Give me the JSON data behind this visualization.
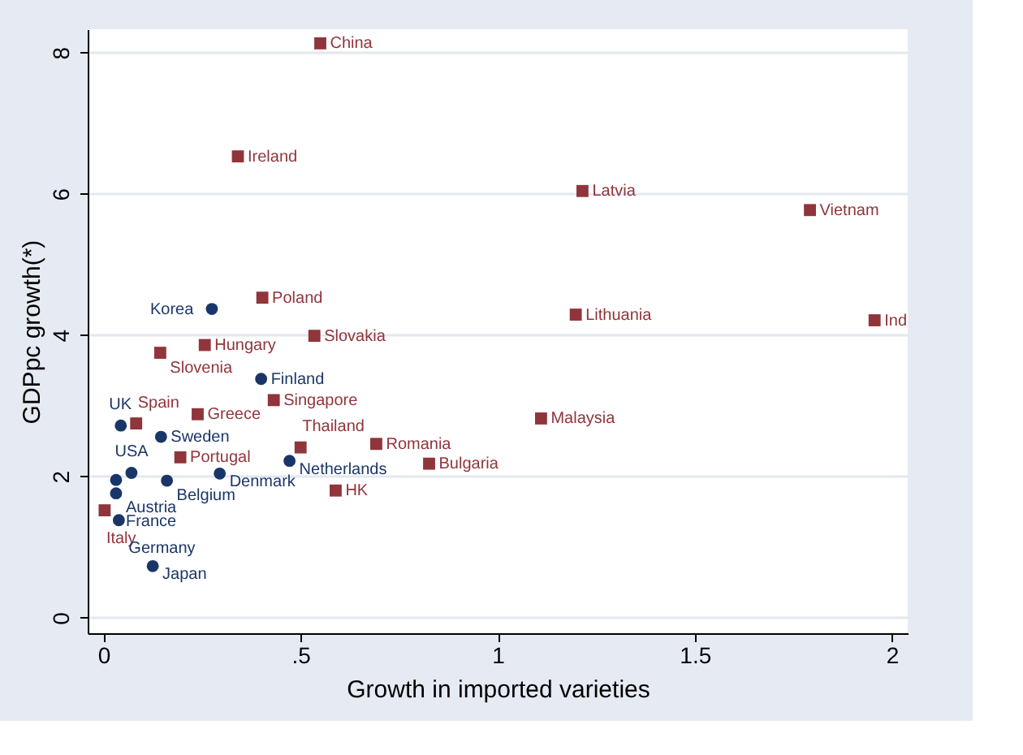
{
  "chart_data": {
    "type": "scatter",
    "xlabel": "Growth in imported varieties",
    "ylabel": "GDPpc growth(*)",
    "xlim": [
      -0.04,
      2.04
    ],
    "ylim": [
      -0.22,
      8.33
    ],
    "xticks": [
      {
        "value": 0,
        "label": "0"
      },
      {
        "value": 0.5,
        "label": ".5"
      },
      {
        "value": 1,
        "label": "1"
      },
      1.5,
      {
        "value": 2,
        "label": "2"
      }
    ],
    "yticks": [
      0,
      2,
      4,
      6,
      8
    ],
    "grid": "y",
    "legend": false,
    "series": [
      {
        "color": "#1a3668",
        "marker": "circle",
        "x": [
          0.275,
          0.4,
          0.044,
          0.146,
          0.472,
          0.071,
          0.295,
          0.032,
          0.161,
          0.032,
          0.039,
          0.125
        ],
        "values": [
          4.37,
          3.38,
          2.72,
          2.56,
          2.22,
          2.05,
          2.04,
          1.95,
          1.94,
          1.76,
          1.38,
          0.73
        ]
      },
      {
        "color": "#90353b",
        "marker": "square",
        "x": [
          0.55,
          0.341,
          1.215,
          1.792,
          0.403,
          1.198,
          1.956,
          0.535,
          0.257,
          0.144,
          0.432,
          0.239,
          1.11,
          0.083,
          0.692,
          0.5,
          0.195,
          0.826,
          0.589,
          0.003
        ],
        "values": [
          8.13,
          6.53,
          6.04,
          5.77,
          4.53,
          4.29,
          4.21,
          3.99,
          3.86,
          3.75,
          3.08,
          2.88,
          2.82,
          2.75,
          2.46,
          2.41,
          2.27,
          2.18,
          1.8,
          1.52
        ]
      }
    ],
    "annotations": [
      {
        "text": "Korea",
        "x": 0.275,
        "y": 4.37
      },
      {
        "text": "Finland",
        "x": 0.4,
        "y": 3.38
      },
      {
        "text": "UK",
        "x": 0.044,
        "y": 2.72
      },
      {
        "text": "Sweden",
        "x": 0.146,
        "y": 2.56
      },
      {
        "text": "Netherlands",
        "x": 0.472,
        "y": 2.22
      },
      {
        "text": "USA",
        "x": 0.071,
        "y": 2.05
      },
      {
        "text": "Denmark",
        "x": 0.295,
        "y": 2.04
      },
      {
        "text": "Austria",
        "x": 0.032,
        "y": 1.95
      },
      {
        "text": "Belgium",
        "x": 0.161,
        "y": 1.94
      },
      {
        "text": "France",
        "x": 0.032,
        "y": 1.76
      },
      {
        "text": "Germany",
        "x": 0.039,
        "y": 1.38
      },
      {
        "text": "Japan",
        "x": 0.125,
        "y": 0.73
      },
      {
        "text": "China",
        "x": 0.55,
        "y": 8.13
      },
      {
        "text": "Ireland",
        "x": 0.341,
        "y": 6.53
      },
      {
        "text": "Latvia",
        "x": 1.215,
        "y": 6.04
      },
      {
        "text": "Vietnam",
        "x": 1.792,
        "y": 5.77
      },
      {
        "text": "Poland",
        "x": 0.403,
        "y": 4.53
      },
      {
        "text": "Lithuania",
        "x": 1.198,
        "y": 4.29
      },
      {
        "text": "Ind",
        "x": 1.956,
        "y": 4.21
      },
      {
        "text": "Slovakia",
        "x": 0.535,
        "y": 3.99
      },
      {
        "text": "Hungary",
        "x": 0.257,
        "y": 3.86
      },
      {
        "text": "Slovenia",
        "x": 0.144,
        "y": 3.75
      },
      {
        "text": "Singapore",
        "x": 0.432,
        "y": 3.08
      },
      {
        "text": "Greece",
        "x": 0.239,
        "y": 2.88
      },
      {
        "text": "Malaysia",
        "x": 1.11,
        "y": 2.82
      },
      {
        "text": "Spain",
        "x": 0.083,
        "y": 2.75
      },
      {
        "text": "Romania",
        "x": 0.692,
        "y": 2.46
      },
      {
        "text": "Thailand",
        "x": 0.5,
        "y": 2.41
      },
      {
        "text": "Portugal",
        "x": 0.195,
        "y": 2.27
      },
      {
        "text": "Bulgaria",
        "x": 0.826,
        "y": 2.18
      },
      {
        "text": "HK",
        "x": 0.589,
        "y": 1.8
      },
      {
        "text": "Italy",
        "x": 0.003,
        "y": 1.52
      }
    ]
  }
}
